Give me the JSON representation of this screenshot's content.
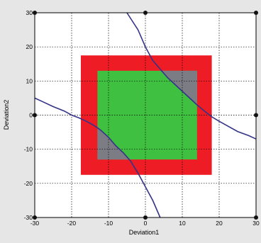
{
  "chart_data": {
    "type": "scatter",
    "title": "",
    "xlabel": "Deviation1",
    "ylabel": "Deviation2",
    "xlim": [
      -30,
      30
    ],
    "ylim": [
      -30,
      30
    ],
    "x_ticks": [
      "-30",
      "-20",
      "-10",
      "0",
      "10",
      "20",
      "30"
    ],
    "y_ticks": [
      "30",
      "20",
      "10",
      "0",
      "-10",
      "-20",
      "-30"
    ],
    "grid": true,
    "regions": [
      {
        "name": "outer-square",
        "color": "#ee1c24",
        "x": [
          -17.5,
          18
        ],
        "y": [
          -17.5,
          17.5
        ]
      },
      {
        "name": "inner-square",
        "color": "#40c040",
        "x": [
          -13,
          14
        ],
        "y": [
          -13,
          13
        ]
      }
    ],
    "gray_corner_color": "#7c7c84",
    "curve_color": "#333388",
    "curves": [
      {
        "name": "upper-right-curve",
        "points": [
          [
            -5,
            30
          ],
          [
            -2,
            25
          ],
          [
            0,
            20
          ],
          [
            2,
            16
          ],
          [
            4,
            13.5
          ],
          [
            6,
            11
          ],
          [
            8,
            9
          ],
          [
            10,
            7
          ],
          [
            12,
            5
          ],
          [
            14,
            3
          ],
          [
            16,
            1.2
          ],
          [
            18,
            -0.5
          ],
          [
            20,
            -1.8
          ],
          [
            22,
            -3
          ],
          [
            25,
            -4.8
          ],
          [
            28,
            -6
          ],
          [
            30,
            -7
          ]
        ]
      },
      {
        "name": "lower-left-curve",
        "points": [
          [
            -30,
            5
          ],
          [
            -28,
            4
          ],
          [
            -25,
            2.5
          ],
          [
            -22,
            1.2
          ],
          [
            -20,
            0
          ],
          [
            -18,
            -0.8
          ],
          [
            -16,
            -1.8
          ],
          [
            -14,
            -3
          ],
          [
            -12,
            -4.5
          ],
          [
            -10,
            -6.5
          ],
          [
            -8,
            -9
          ],
          [
            -6,
            -11
          ],
          [
            -4,
            -13.5
          ],
          [
            -2,
            -17
          ],
          [
            0,
            -21
          ],
          [
            2,
            -25
          ],
          [
            4,
            -30
          ]
        ]
      }
    ],
    "markers": [
      [
        -30,
        30
      ],
      [
        0,
        30
      ],
      [
        30,
        30
      ],
      [
        -30,
        0
      ],
      [
        30,
        0
      ],
      [
        -30,
        -30
      ],
      [
        0,
        -30
      ],
      [
        30,
        -30
      ]
    ]
  }
}
